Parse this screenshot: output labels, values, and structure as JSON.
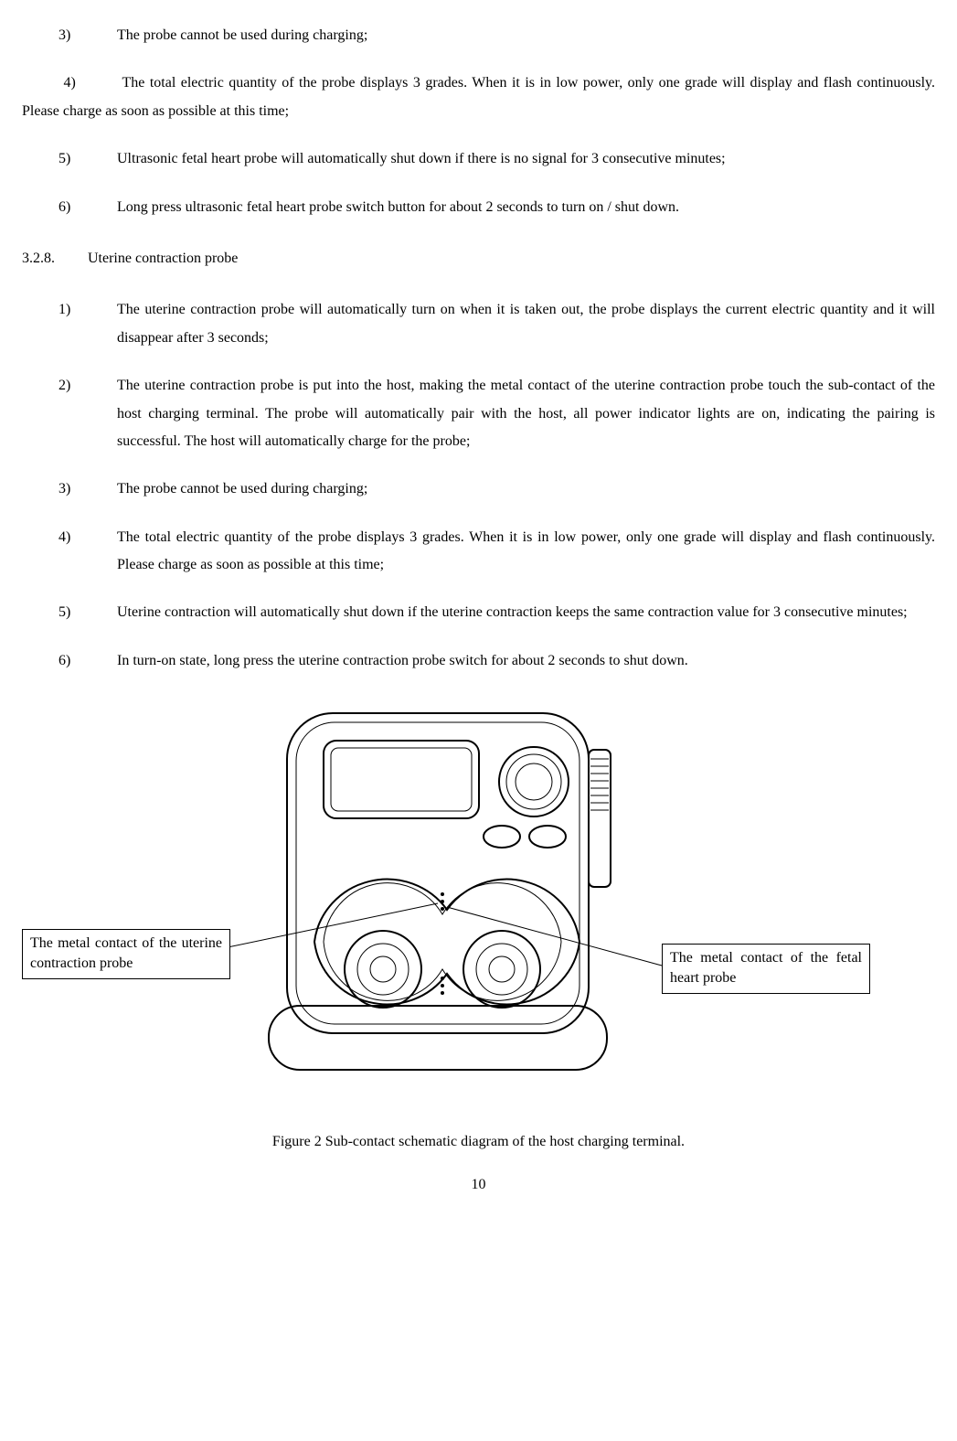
{
  "topItems": [
    {
      "num": "3)",
      "text": "The probe cannot be used during charging;"
    }
  ],
  "wrapItem": {
    "num": "4)",
    "text": "The total electric quantity of the probe displays 3 grades. When it is in low power, only one grade will display and flash continuously. Please charge as soon as possible at this time;"
  },
  "topItems2": [
    {
      "num": "5)",
      "text": "Ultrasonic fetal heart probe will automatically shut down if there is no signal for 3 consecutive minutes;"
    },
    {
      "num": "6)",
      "text": "Long press ultrasonic fetal heart probe switch button for about 2 seconds to turn on / shut down."
    }
  ],
  "section": {
    "num": "3.2.8.",
    "title": "Uterine contraction probe"
  },
  "ucItems": [
    {
      "num": "1)",
      "text": "The uterine contraction probe will automatically turn on when it is taken out, the probe displays the current electric quantity and it will disappear after 3 seconds;"
    },
    {
      "num": "2)",
      "text": "The uterine contraction probe is put into the host, making the metal contact of the uterine contraction probe touch the sub-contact of the host charging terminal. The probe will automatically pair with the host, all power indicator lights are on, indicating the pairing is successful. The host will automatically charge for the probe;"
    },
    {
      "num": "3)",
      "text": "The probe cannot be used during charging;"
    },
    {
      "num": "4)",
      "text": "The total electric quantity of the probe displays 3 grades. When it is in low power, only one grade will display and flash continuously. Please charge as soon as possible at this time;"
    },
    {
      "num": "5)",
      "text": "Uterine contraction will automatically shut down if the uterine contraction keeps the same contraction value for 3 consecutive minutes;"
    },
    {
      "num": "6)",
      "text": "In turn-on state, long press the uterine contraction probe switch for about 2 seconds to shut down."
    }
  ],
  "calloutLeft": "The metal contact of the uterine contraction probe",
  "calloutRight": "The metal contact of the fetal heart probe",
  "caption": "Figure 2 Sub-contact schematic diagram of the host charging terminal.",
  "pageNumber": "10",
  "style": {
    "stroke": "#000000",
    "fill": "#ffffff",
    "strokeWidth": 2,
    "thinStroke": 1
  }
}
